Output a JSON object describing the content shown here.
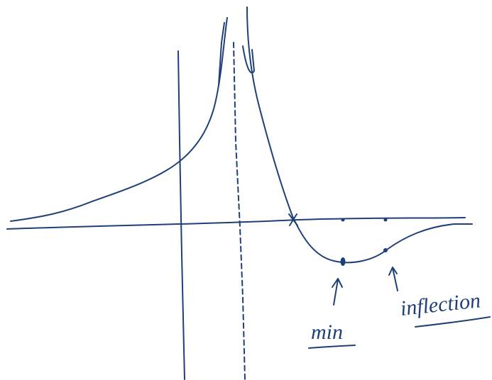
{
  "annotations": [
    {
      "label": "min"
    },
    {
      "label": "inflection"
    }
  ]
}
